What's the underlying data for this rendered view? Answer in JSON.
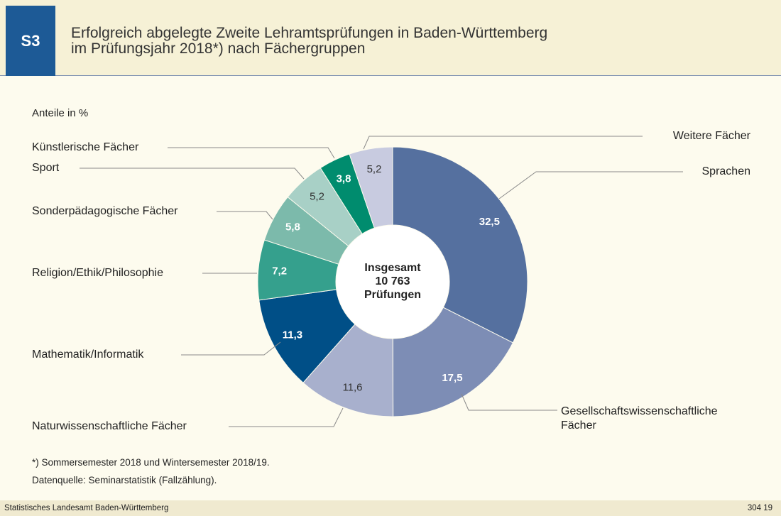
{
  "badge": "S3",
  "chart_data": {
    "type": "donut",
    "title": [
      "Erfolgreich abgelegte Zweite Lehramtsprüfungen in Baden-Württemberg",
      "im Prüfungsjahr 2018*) nach Fächergruppen"
    ],
    "subtitle": "Anteile in %",
    "center_text": [
      "Insgesamt",
      "10 763",
      "Prüfungen"
    ],
    "categories": [
      "Sprachen",
      "Gesellschaftswissenschaftliche Fächer",
      "Naturwissenschaftliche Fächer",
      "Mathematik/Informatik",
      "Religion/Ethik/Philosophie",
      "Sonderpädagogische Fächer",
      "Sport",
      "Künstlerische Fächer",
      "Weitere Fächer"
    ],
    "values": [
      32.5,
      17.5,
      11.6,
      11.3,
      7.2,
      5.8,
      5.2,
      3.8,
      5.2
    ],
    "value_labels": [
      "32,5",
      "17,5",
      "11,6",
      "11,3",
      "7,2",
      "5,8",
      "5,2",
      "3,8",
      "5,2"
    ],
    "colors": [
      "#55709f",
      "#7d8db5",
      "#a8b0cd",
      "#004f87",
      "#35a08d",
      "#7cbaab",
      "#a8d0c6",
      "#008c6e",
      "#c8cbe0"
    ],
    "label_colors": [
      "#ffffff",
      "#ffffff",
      "#333333",
      "#ffffff",
      "#ffffff",
      "#ffffff",
      "#333333",
      "#ffffff",
      "#333333"
    ]
  },
  "notes": [
    "*) Sommersemester 2018 und Wintersemester 2018/19.",
    "Datenquelle: Seminarstatistik (Fallzählung)."
  ],
  "footer": {
    "source": "Statistisches Landesamt Baden-Württemberg",
    "code": "304 19"
  }
}
